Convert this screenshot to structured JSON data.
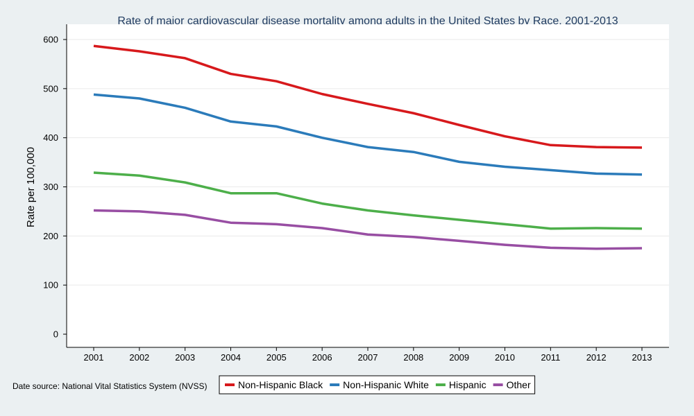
{
  "chart_data": {
    "type": "line",
    "title": "Rate of major cardiovascular disease mortality among adults in the United States by Race, 2001-2013",
    "xlabel": "",
    "ylabel": "Rate per 100,000",
    "ylim": [
      0,
      620
    ],
    "yticks": [
      0,
      100,
      200,
      300,
      400,
      500,
      600
    ],
    "x": [
      2001,
      2002,
      2003,
      2004,
      2005,
      2006,
      2007,
      2008,
      2009,
      2010,
      2011,
      2012,
      2013
    ],
    "grid": true,
    "legend_position": "bottom",
    "series": [
      {
        "name": "Non-Hispanic Black",
        "color": "#d7191c",
        "values": [
          587,
          576,
          562,
          530,
          515,
          489,
          469,
          450,
          426,
          403,
          385,
          381,
          380
        ]
      },
      {
        "name": "Non-Hispanic White",
        "color": "#2b7bba",
        "values": [
          488,
          480,
          461,
          433,
          423,
          400,
          381,
          371,
          351,
          341,
          334,
          327,
          325
        ]
      },
      {
        "name": "Hispanic",
        "color": "#4daf4a",
        "values": [
          329,
          323,
          309,
          287,
          287,
          266,
          252,
          242,
          233,
          224,
          215,
          216,
          215
        ]
      },
      {
        "name": "Other",
        "color": "#984ea3",
        "values": [
          252,
          250,
          243,
          227,
          224,
          216,
          203,
          198,
          190,
          182,
          176,
          174,
          175
        ]
      }
    ],
    "source": "Date source: National Vital Statistics System (NVSS)"
  }
}
